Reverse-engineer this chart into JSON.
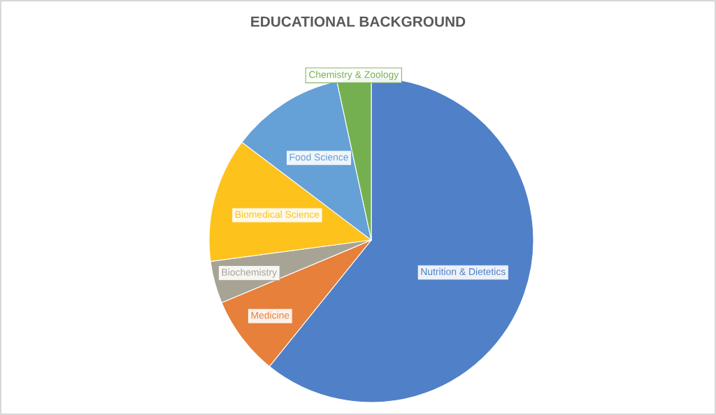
{
  "chart_data": {
    "type": "pie",
    "title": "EDUCATIONAL BACKGROUND",
    "categories": [
      "Nutrition & Dietetics",
      "Medicine",
      "Biochemistry",
      "Biomedical Science",
      "Food Science",
      "Chemistry & Zoology"
    ],
    "values": [
      60.8,
      7.9,
      4.2,
      12.4,
      11.3,
      3.4
    ],
    "colors": [
      "#5080c8",
      "#e6803a",
      "#a8a495",
      "#fdc21c",
      "#65a0d7",
      "#75b050"
    ]
  }
}
